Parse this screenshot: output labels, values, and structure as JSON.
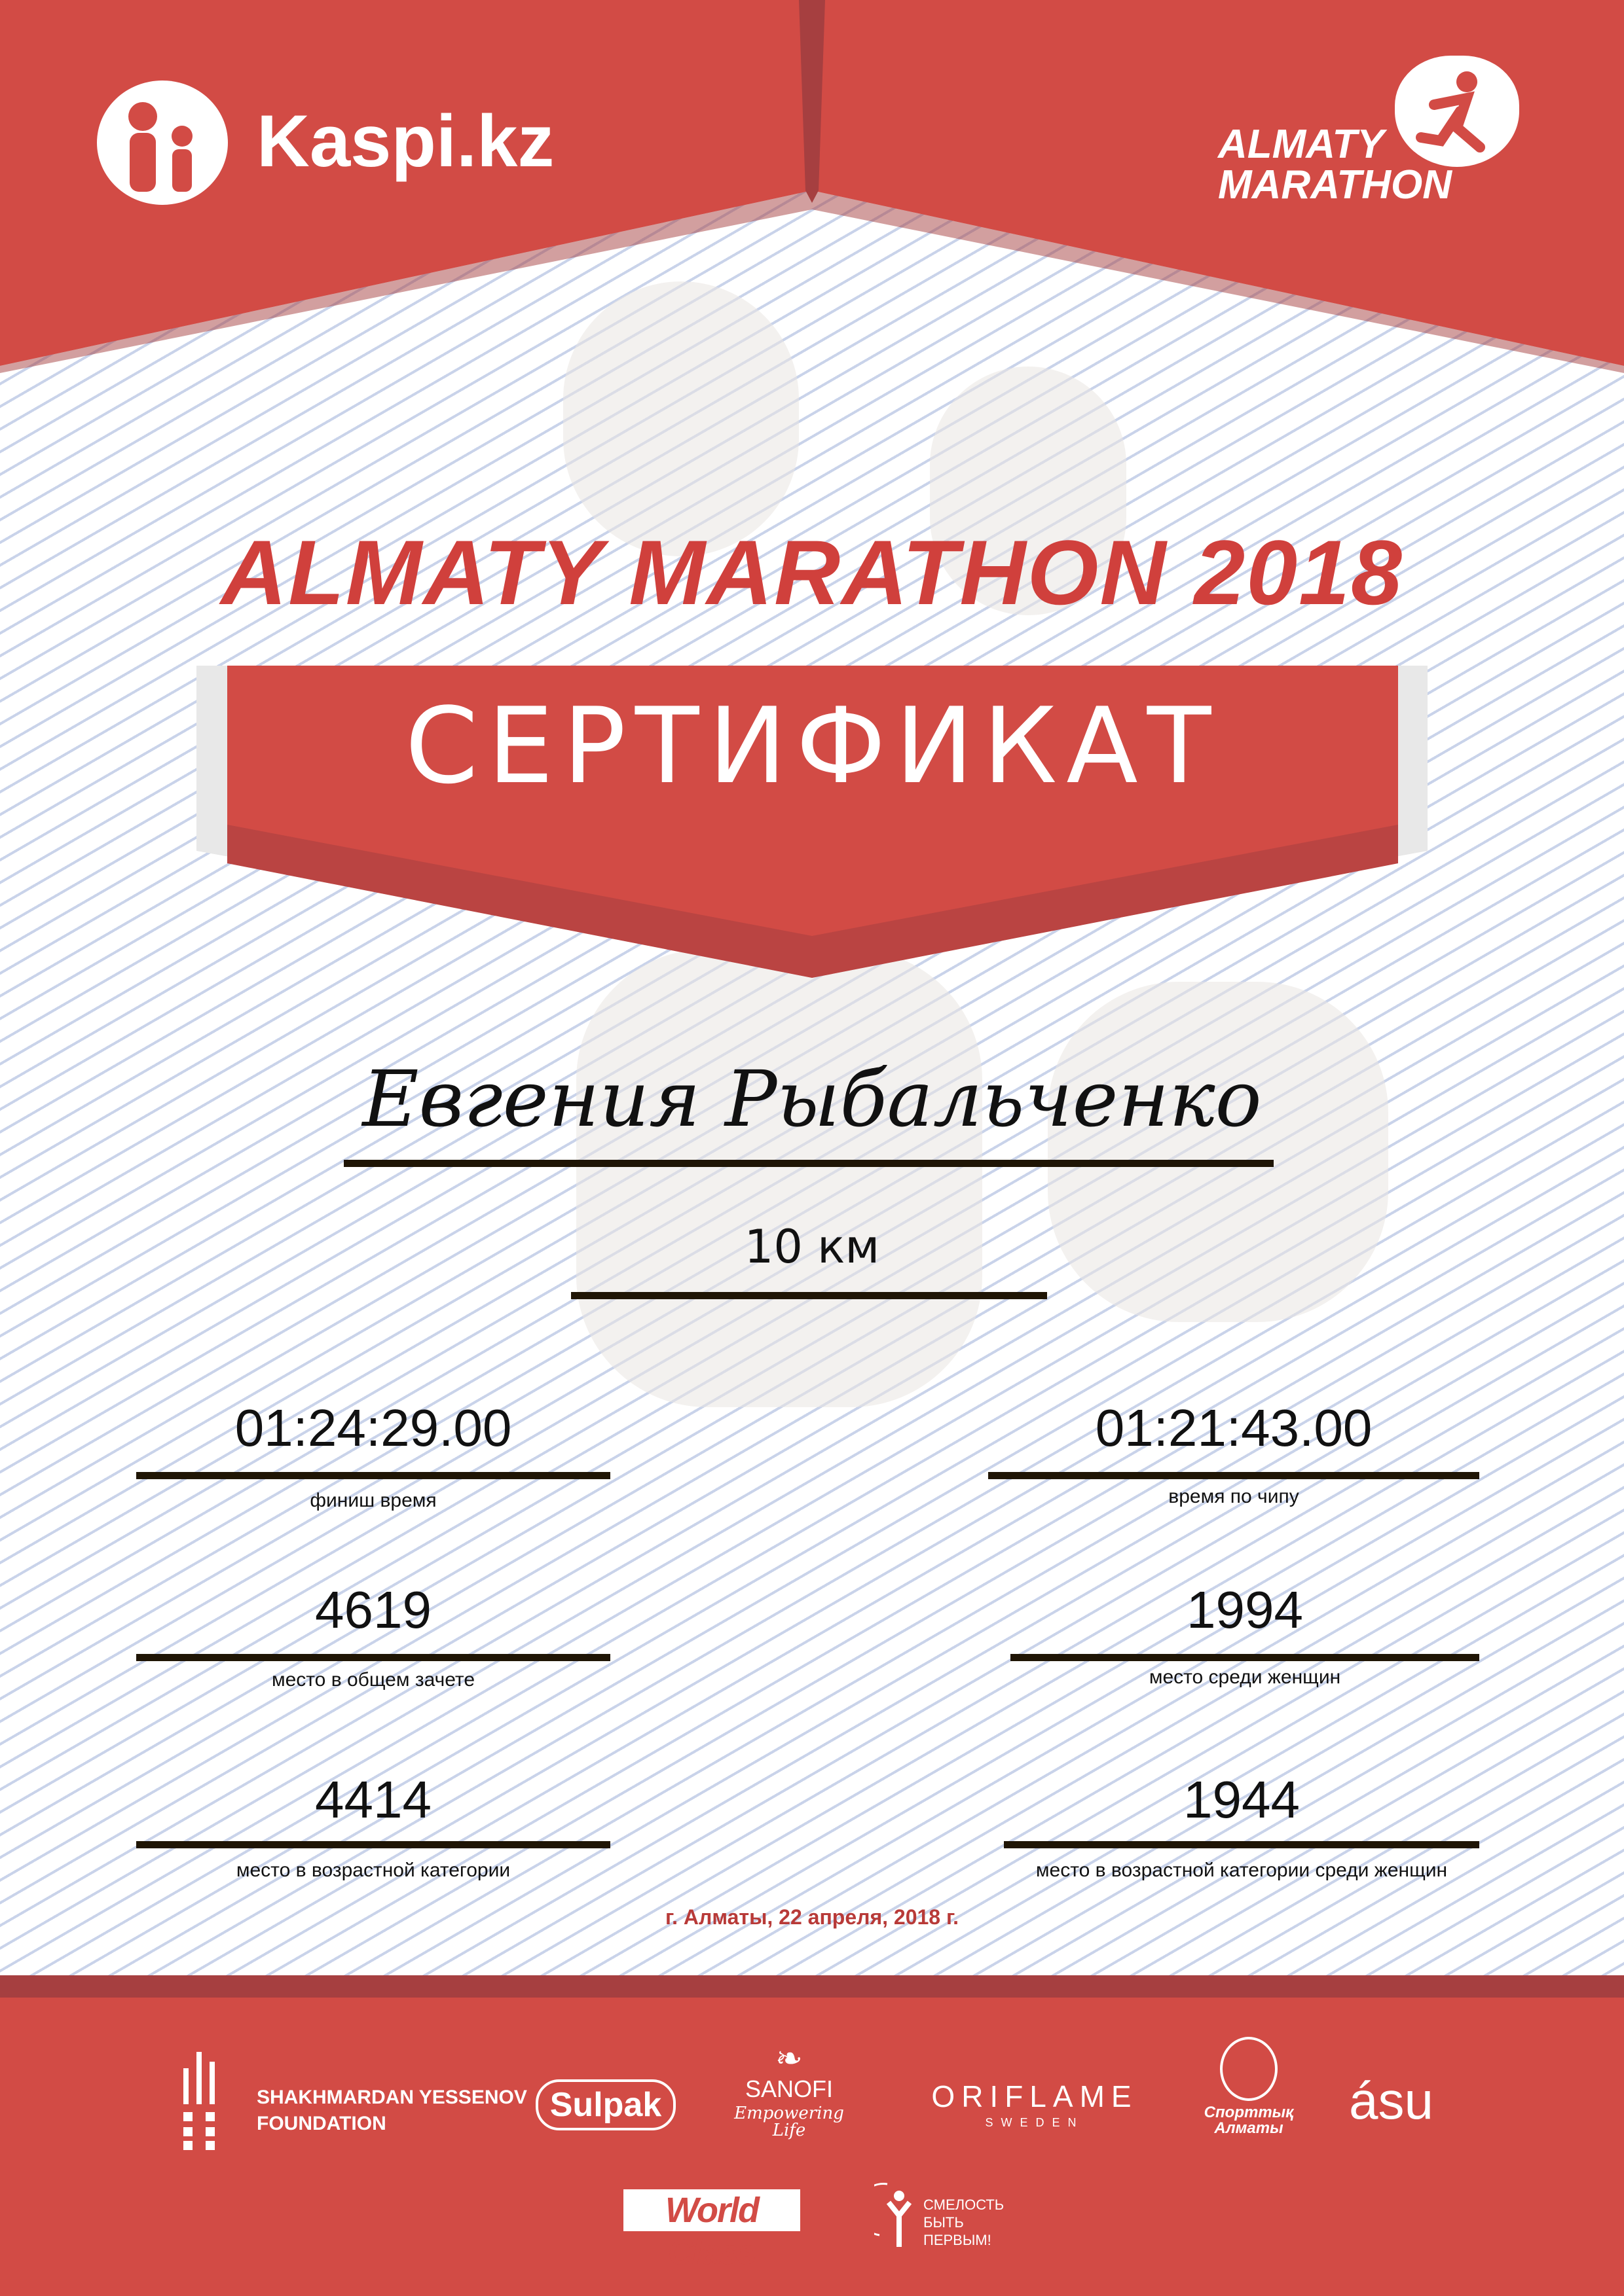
{
  "header": {
    "sponsor_logo_text": "Kaspi.kz",
    "event_logo_line1": "ALMATY",
    "event_logo_line2": "MARATHON"
  },
  "title": "ALMATY MARATHON 2018",
  "banner": "СЕРТИФИКАТ",
  "participant_name": "Евгения Рыбальченко",
  "distance": "10 км",
  "results": {
    "finish_time": {
      "value": "01:24:29.00",
      "label": "финиш время"
    },
    "chip_time": {
      "value": "01:21:43.00",
      "label": "время по чипу"
    },
    "overall_place": {
      "value": "4619",
      "label": "место в общем зачете"
    },
    "women_place": {
      "value": "1994",
      "label": "место среди женщин"
    },
    "age_place": {
      "value": "4414",
      "label": "место в возрастной категории"
    },
    "women_age_place": {
      "value": "1944",
      "label": "место в возрастной категории среди женщин"
    }
  },
  "date_line": "г. Алматы, 22 апреля, 2018 г.",
  "sponsors": {
    "yessenov": [
      "SHAKHMARDAN YESSENOV",
      "FOUNDATION"
    ],
    "sulpak": "Sulpak",
    "sanofi": [
      "SANOFI",
      "Empowering Life"
    ],
    "oriflame": [
      "ORIFLAME",
      "SWEDEN"
    ],
    "sport_almaty": [
      "Спорттық",
      "Алматы"
    ],
    "asu": "ásu",
    "worldclass": "World Class",
    "fund": [
      "СМЕЛОСТЬ",
      "БЫТЬ",
      "ПЕРВЫМ!"
    ]
  },
  "colors": {
    "red": "#d24b45",
    "dark_red": "#a63f40",
    "title_red": "#d0403c",
    "date_red": "#b83a38"
  }
}
